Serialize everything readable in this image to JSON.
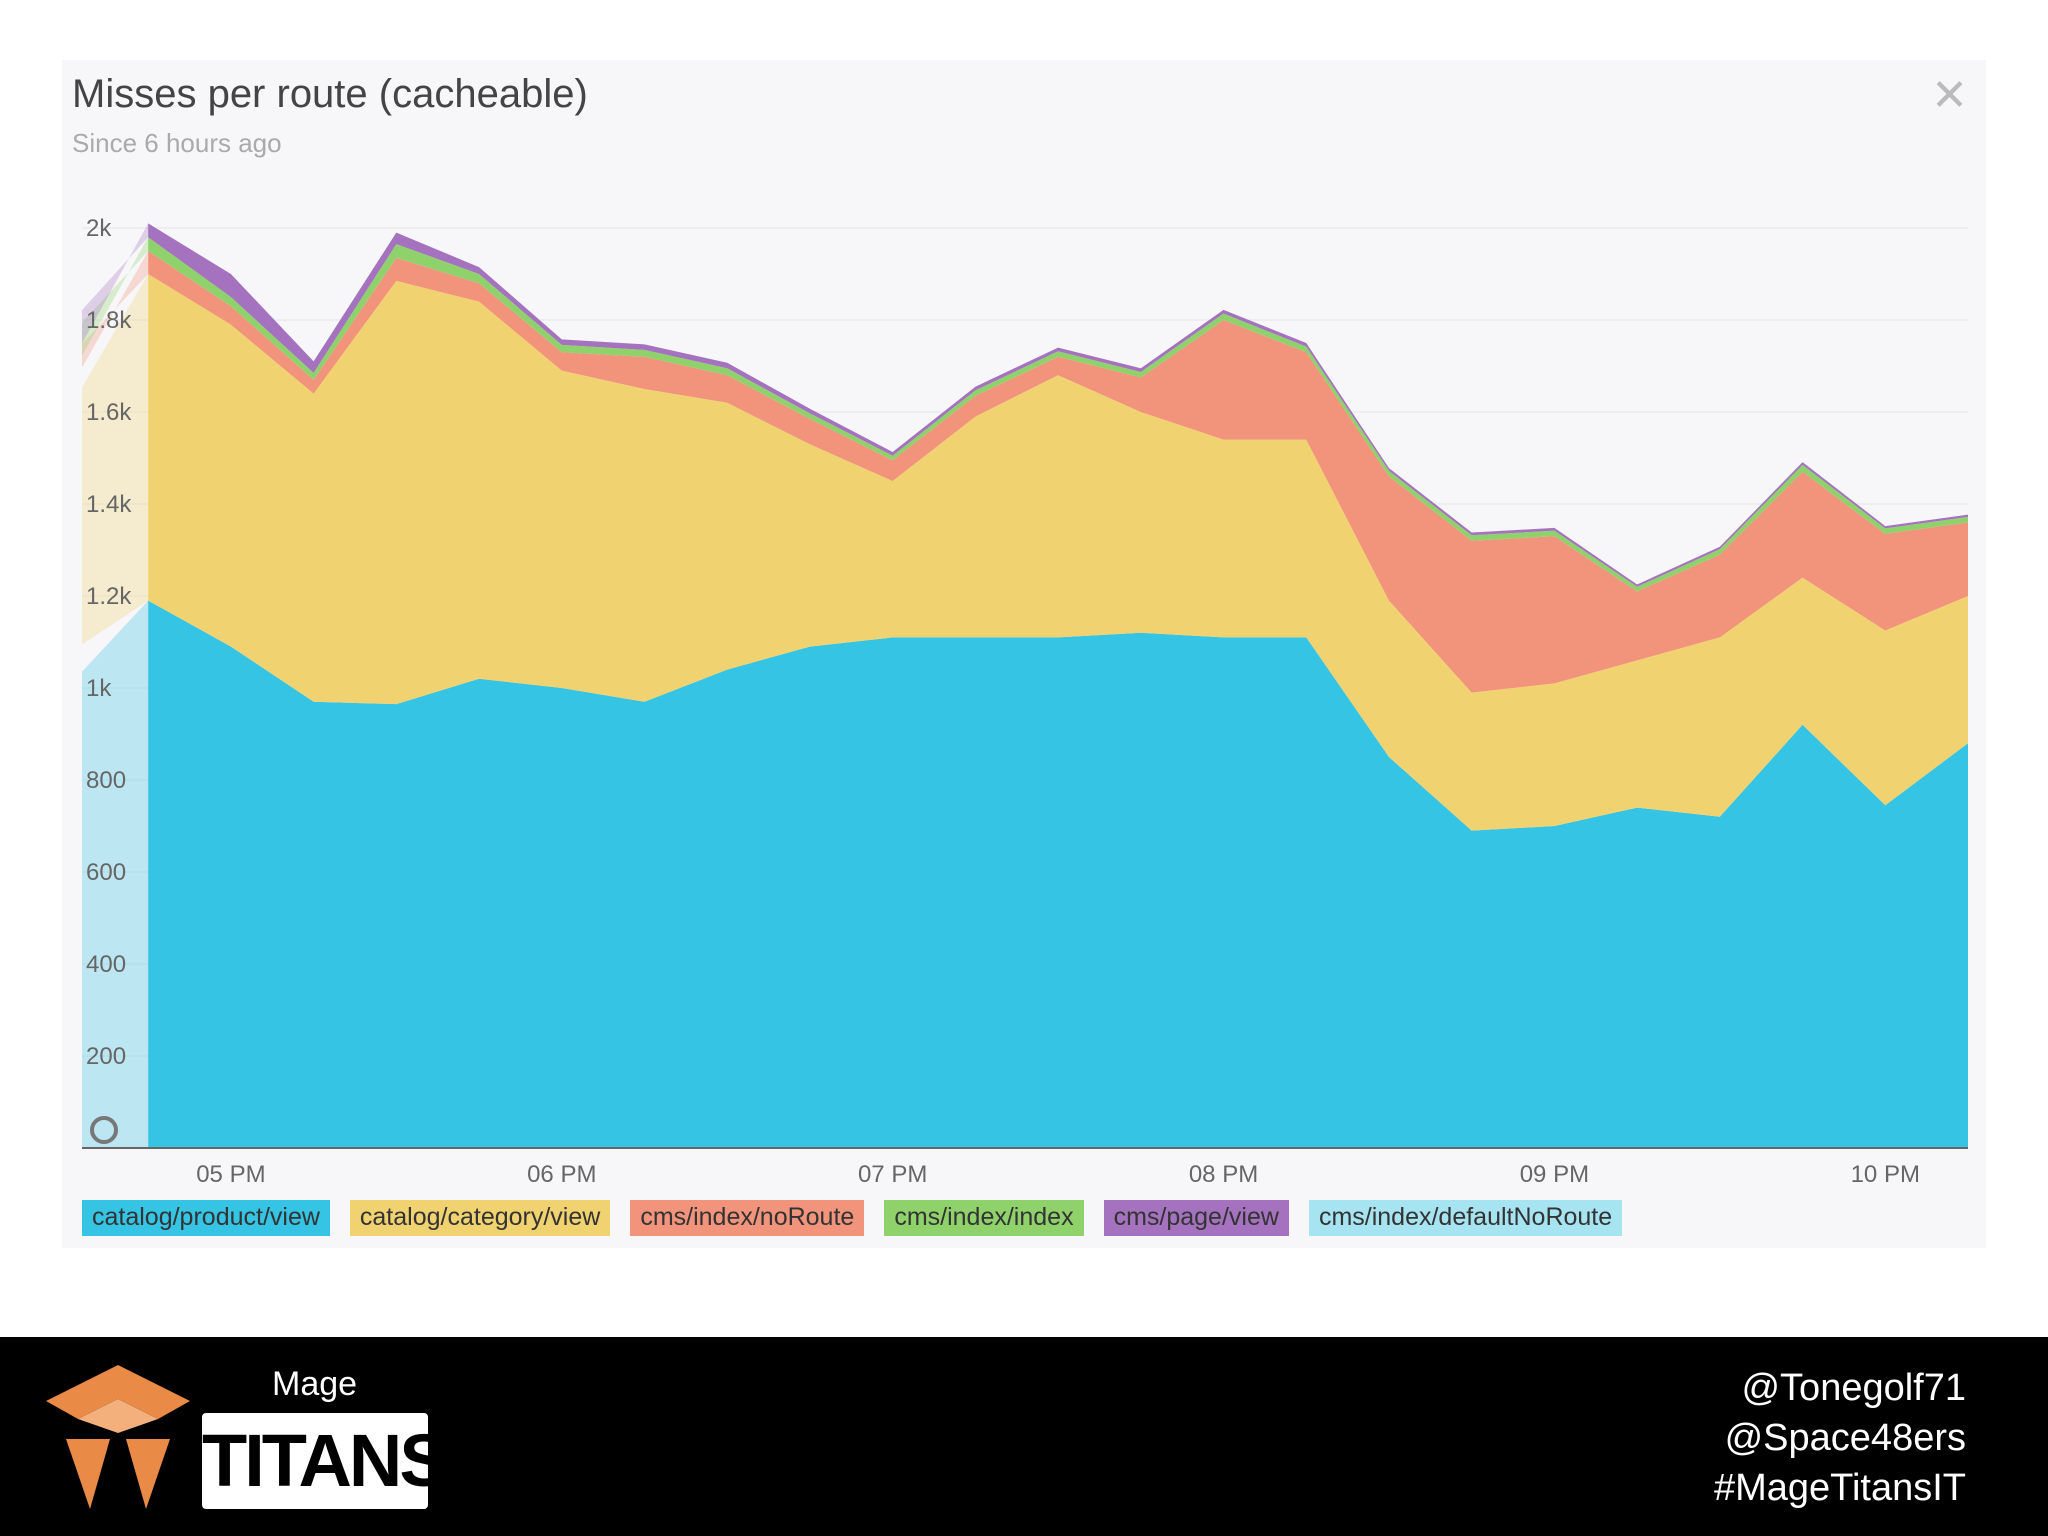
{
  "panel": {
    "title": "Misses per route (cacheable)",
    "subtitle": "Since 6 hours ago",
    "close_label": "✕"
  },
  "chart_data": {
    "type": "area",
    "stacked": true,
    "title": "Misses per route (cacheable)",
    "subtitle": "Since 6 hours ago",
    "xlabel": "",
    "ylabel": "",
    "ylim": [
      0,
      2000
    ],
    "xlim": [
      16.55,
      22.25
    ],
    "yticks": [
      0,
      200,
      400,
      600,
      800,
      1000,
      1200,
      1400,
      1600,
      1800,
      2000
    ],
    "ytick_labels": [
      "0",
      "200",
      "400",
      "600",
      "800",
      "1k",
      "1.2k",
      "1.4k",
      "1.6k",
      "1.8k",
      "2k"
    ],
    "xticks": [
      17,
      18,
      19,
      20,
      21,
      22
    ],
    "xtick_labels": [
      "05 PM",
      "06 PM",
      "07 PM",
      "08 PM",
      "09 PM",
      "10 PM"
    ],
    "legend_position": "bottom",
    "x": [
      16.75,
      17.0,
      17.25,
      17.5,
      17.75,
      18.0,
      18.25,
      18.5,
      18.75,
      19.0,
      19.25,
      19.5,
      19.75,
      20.0,
      20.25,
      20.5,
      20.75,
      21.0,
      21.25,
      21.5,
      21.75,
      22.0,
      22.25
    ],
    "series": [
      {
        "name": "catalog/product/view",
        "color": "#35c4e4",
        "values": [
          1190,
          1090,
          970,
          965,
          1020,
          1000,
          970,
          1040,
          1090,
          1110,
          1110,
          1110,
          1120,
          1110,
          1110,
          850,
          690,
          700,
          740,
          720,
          920,
          745,
          880
        ]
      },
      {
        "name": "catalog/category/view",
        "color": "#f1d270",
        "values": [
          710,
          700,
          670,
          920,
          820,
          690,
          680,
          580,
          440,
          340,
          480,
          570,
          480,
          430,
          430,
          340,
          300,
          310,
          320,
          390,
          320,
          380,
          320
        ]
      },
      {
        "name": "cms/index/noRoute",
        "color": "#f2937b",
        "values": [
          50,
          40,
          30,
          50,
          40,
          40,
          70,
          60,
          55,
          45,
          45,
          40,
          75,
          260,
          190,
          270,
          330,
          320,
          150,
          180,
          230,
          210,
          160
        ]
      },
      {
        "name": "cms/index/index",
        "color": "#8fd26b",
        "values": [
          30,
          20,
          15,
          30,
          20,
          16,
          15,
          15,
          12,
          10,
          12,
          12,
          12,
          14,
          12,
          12,
          12,
          12,
          10,
          12,
          15,
          12,
          12
        ]
      },
      {
        "name": "cms/page/view",
        "color": "#a472be",
        "values": [
          30,
          50,
          25,
          25,
          15,
          12,
          12,
          12,
          10,
          8,
          8,
          8,
          8,
          8,
          8,
          6,
          6,
          6,
          5,
          5,
          6,
          5,
          5
        ]
      },
      {
        "name": "cms/index/defaultNoRoute",
        "color": "#a6e4f2",
        "values": [
          0,
          0,
          0,
          0,
          0,
          0,
          0,
          0,
          0,
          0,
          0,
          0,
          0,
          0,
          0,
          0,
          0,
          0,
          0,
          0,
          0,
          0,
          0
        ]
      }
    ]
  },
  "footer": {
    "brand_top": "Mage",
    "brand_bottom": "TITANS",
    "handles": [
      "@Tonegolf71",
      "@Space48ers",
      "#MageTitansIT"
    ]
  }
}
